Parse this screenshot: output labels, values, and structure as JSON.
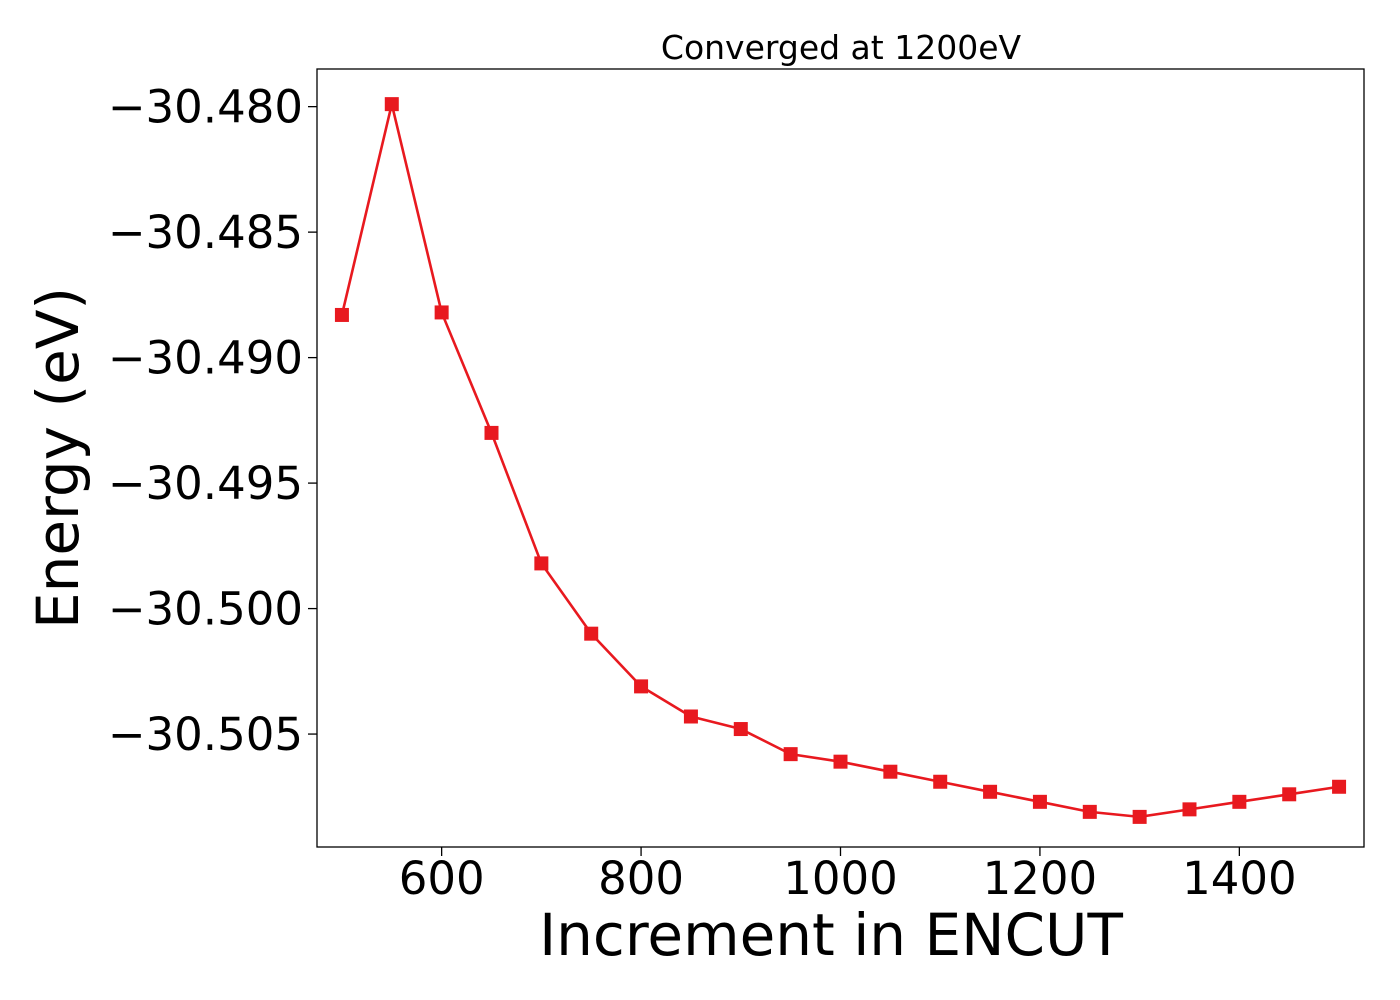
{
  "chart_data": {
    "type": "line",
    "title": "Converged at 1200eV",
    "xlabel": "Increment in ENCUT",
    "ylabel": "Energy (eV)",
    "xlim": [
      475,
      1525
    ],
    "ylim": [
      -30.5095,
      -30.4785
    ],
    "xticks": [
      600,
      800,
      1000,
      1200,
      1400
    ],
    "xtick_labels": [
      "600",
      "800",
      "1000",
      "1200",
      "1400"
    ],
    "yticks": [
      -30.48,
      -30.485,
      -30.49,
      -30.495,
      -30.5,
      -30.505
    ],
    "ytick_labels": [
      "−30.480",
      "−30.485",
      "−30.490",
      "−30.495",
      "−30.500",
      "−30.505"
    ],
    "grid": false,
    "series": [
      {
        "color": "#e8191f",
        "marker": "square",
        "x": [
          500,
          550,
          600,
          650,
          700,
          750,
          800,
          850,
          900,
          950,
          1000,
          1050,
          1100,
          1150,
          1200,
          1250,
          1300,
          1350,
          1400,
          1450,
          1500
        ],
        "y": [
          -30.4883,
          -30.4799,
          -30.4882,
          -30.493,
          -30.4982,
          -30.501,
          -30.5031,
          -30.5043,
          -30.5048,
          -30.5058,
          -30.5061,
          -30.5065,
          -30.5069,
          -30.5073,
          -30.5077,
          -30.5081,
          -30.5083,
          -30.508,
          -30.5077,
          -30.5074,
          -30.5071
        ]
      }
    ]
  }
}
